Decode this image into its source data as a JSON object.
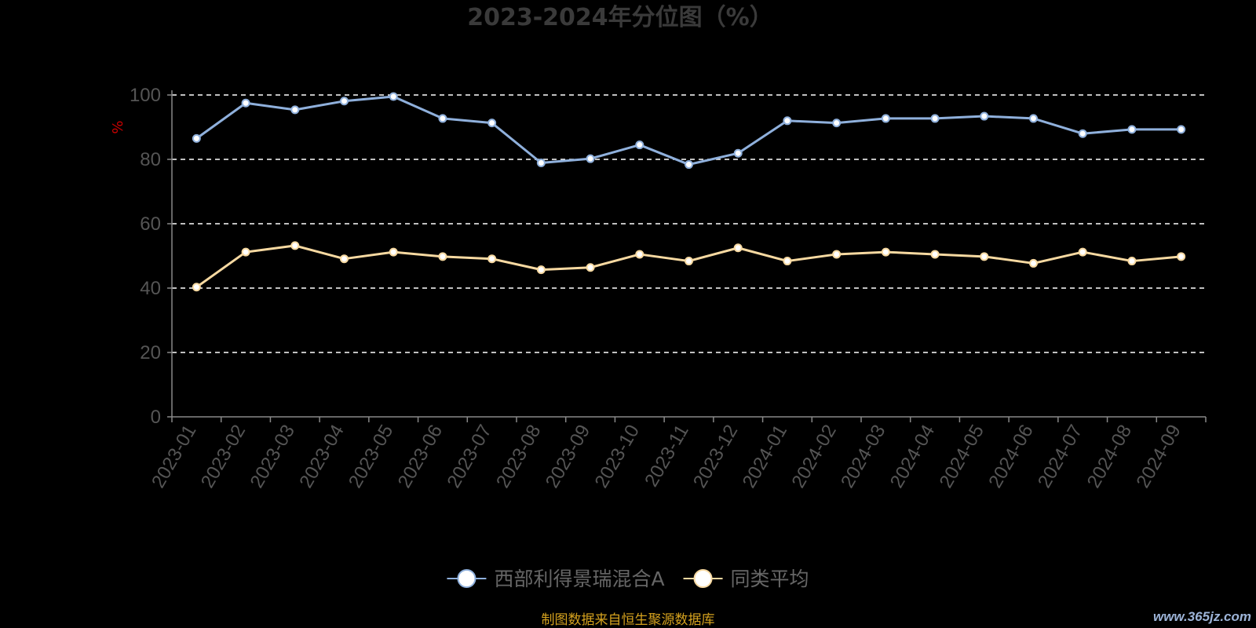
{
  "chart_data": {
    "type": "line",
    "title": "2023-2024年分位图（%）",
    "ylabel": "%",
    "xlabel": "",
    "ylim": [
      0,
      100
    ],
    "yticks": [
      0,
      20,
      40,
      60,
      80,
      100
    ],
    "grid": true,
    "legend_position": "bottom-center",
    "categories": [
      "2023-01",
      "2023-02",
      "2023-03",
      "2023-04",
      "2023-05",
      "2023-06",
      "2023-07",
      "2023-08",
      "2023-09",
      "2023-10",
      "2023-11",
      "2023-12",
      "2024-01",
      "2024-02",
      "2024-03",
      "2024-04",
      "2024-05",
      "2024-06",
      "2024-07",
      "2024-08",
      "2024-09"
    ],
    "series": [
      {
        "name": "西部利得景瑞混合A",
        "color": "#8fb0dc",
        "values": [
          86.5,
          97.5,
          95.4,
          98.1,
          99.5,
          92.7,
          91.3,
          78.9,
          80.2,
          84.5,
          78.4,
          81.9,
          92.0,
          91.3,
          92.7,
          92.7,
          93.4,
          92.7,
          88.0,
          89.3,
          89.3
        ]
      },
      {
        "name": "同类平均",
        "color": "#f7d9a1",
        "values": [
          40.3,
          51.2,
          53.2,
          49.1,
          51.2,
          49.8,
          49.1,
          45.7,
          46.4,
          50.5,
          48.4,
          52.5,
          48.4,
          50.5,
          51.2,
          50.5,
          49.8,
          47.7,
          51.2,
          48.4,
          49.8
        ]
      }
    ],
    "source_note": "制图数据来自恒生聚源数据库",
    "watermark": "www.365jz.com"
  },
  "colors": {
    "background": "#000000",
    "title": "#3a3a3a",
    "axis": "#888888",
    "tick_label": "#555555",
    "grid": "#ffffff",
    "ylabel": "#cc0000",
    "legend_text": "#666666",
    "source": "#d4a11e",
    "watermark": "#9db4d8"
  }
}
